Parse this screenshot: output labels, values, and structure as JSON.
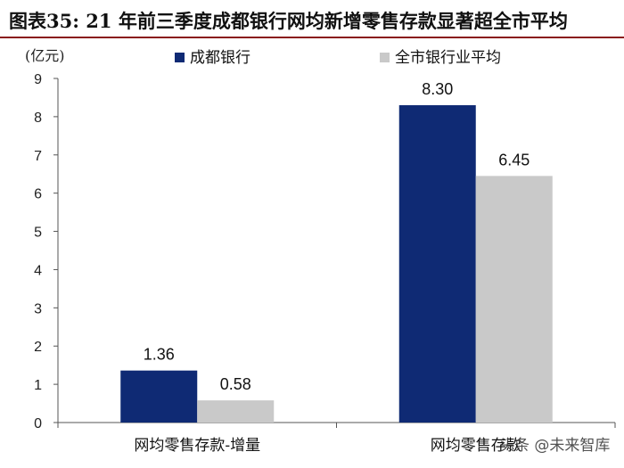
{
  "title": "图表35:   21 年前三季度成都银行网均新增零售存款显著超全市平均",
  "unit_label": "(亿元)",
  "watermark": "头条 @未来智库",
  "colors": {
    "navy": "#0f2a74",
    "gray": "#c9c9c9",
    "title_rule": "#8a1a1a"
  },
  "chart_data": {
    "type": "bar",
    "categories": [
      "网均零售存款-增量",
      "网均零售存款"
    ],
    "series": [
      {
        "name": "成都银行",
        "values": [
          1.36,
          8.3
        ],
        "labels": [
          "1.36",
          "8.30"
        ],
        "color": "#0f2a74"
      },
      {
        "name": "全市银行业平均",
        "values": [
          0.58,
          6.45
        ],
        "labels": [
          "0.58",
          "6.45"
        ],
        "color": "#c9c9c9"
      }
    ],
    "yticks": [
      "0",
      "1",
      "2",
      "3",
      "4",
      "5",
      "6",
      "7",
      "8",
      "9"
    ],
    "ylim": [
      0,
      9
    ],
    "ylabel": "(亿元)",
    "legend_position": "top",
    "grid": false
  }
}
